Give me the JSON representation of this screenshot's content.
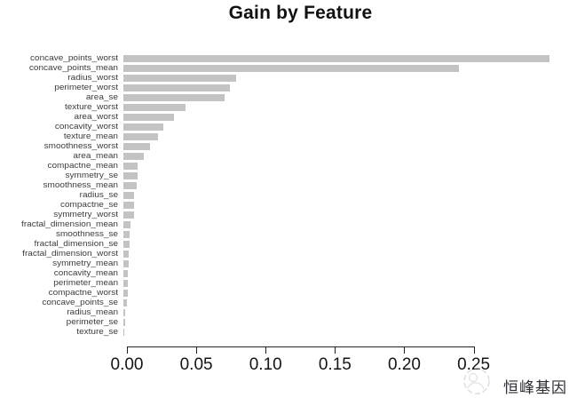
{
  "chart_data": {
    "type": "bar",
    "orientation": "horizontal",
    "title": "Gain by Feature",
    "xlabel": "",
    "ylabel": "",
    "xlim": [
      0,
      0.25
    ],
    "x_ticks": [
      {
        "value": 0.0,
        "label": "0.00"
      },
      {
        "value": 0.05,
        "label": "0.05"
      },
      {
        "value": 0.1,
        "label": "0.10"
      },
      {
        "value": 0.15,
        "label": "0.15"
      },
      {
        "value": 0.2,
        "label": "0.20"
      },
      {
        "value": 0.25,
        "label": "0.25"
      }
    ],
    "grid": false,
    "legend": false,
    "bar_color": "#c3c3c3",
    "categories": [
      "concave_points_worst",
      "concave_points_mean",
      "radius_worst",
      "perimeter_worst",
      "area_se",
      "texture_worst",
      "area_worst",
      "concavity_worst",
      "texture_mean",
      "smoothness_worst",
      "area_mean",
      "compactne_mean",
      "symmetry_se",
      "smoothness_mean",
      "radius_se",
      "compactne_se",
      "symmetry_worst",
      "fractal_dimension_mean",
      "smoothness_se",
      "fractal_dimension_se",
      "fractal_dimension_worst",
      "symmetry_mean",
      "concavity_mean",
      "perimeter_mean",
      "compactne_worst",
      "concave_points_se",
      "radius_mean",
      "perimeter_se",
      "texture_se"
    ],
    "values": [
      0.307,
      0.242,
      0.081,
      0.077,
      0.073,
      0.045,
      0.0365,
      0.029,
      0.025,
      0.019,
      0.015,
      0.0105,
      0.0105,
      0.0098,
      0.008,
      0.008,
      0.0078,
      0.0052,
      0.0047,
      0.0042,
      0.0036,
      0.0036,
      0.0032,
      0.0032,
      0.003,
      0.0023,
      0.0016,
      0.0015,
      0.0008
    ]
  },
  "watermark": {
    "text": "恒峰基因",
    "logo": "circular-sketch-logo"
  }
}
